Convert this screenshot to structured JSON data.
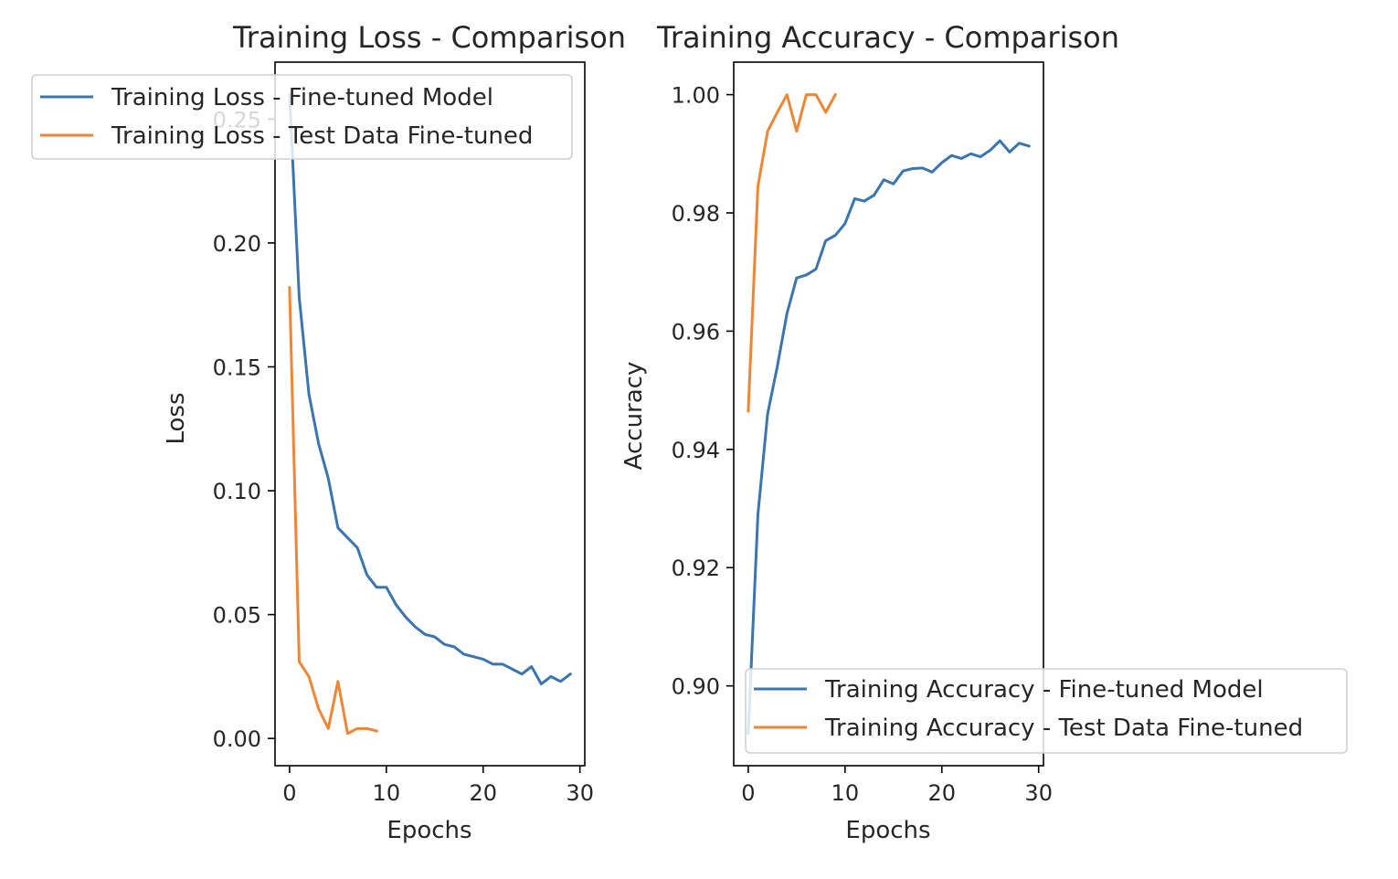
{
  "colors": {
    "series_blue": "#3b75af",
    "series_orange": "#ef8636",
    "axis": "#000000",
    "text": "#262626",
    "legend_border": "#d0d0d0"
  },
  "chart_data": [
    {
      "type": "line",
      "title": "Training Loss - Comparison",
      "xlabel": "Epochs",
      "ylabel": "Loss",
      "xlim": [
        -1.5,
        30.5
      ],
      "ylim": [
        -0.011,
        0.273
      ],
      "xticks": [
        0,
        10,
        20,
        30
      ],
      "xtick_labels": [
        "0",
        "10",
        "20",
        "30"
      ],
      "yticks": [
        0.0,
        0.05,
        0.1,
        0.15,
        0.2,
        0.25
      ],
      "ytick_labels": [
        "0.00",
        "0.05",
        "0.10",
        "0.15",
        "0.20",
        "0.25"
      ],
      "grid": false,
      "legend_position": "upper-left",
      "series": [
        {
          "name": "Training Loss - Fine-tuned Model",
          "color": "#3b75af",
          "x": [
            0,
            1,
            2,
            3,
            4,
            5,
            6,
            7,
            8,
            9,
            10,
            11,
            12,
            13,
            14,
            15,
            16,
            17,
            18,
            19,
            20,
            21,
            22,
            23,
            24,
            25,
            26,
            27,
            28,
            29
          ],
          "y": [
            0.26,
            0.178,
            0.139,
            0.119,
            0.105,
            0.085,
            0.081,
            0.077,
            0.066,
            0.061,
            0.061,
            0.054,
            0.049,
            0.045,
            0.042,
            0.041,
            0.038,
            0.037,
            0.034,
            0.033,
            0.032,
            0.03,
            0.03,
            0.028,
            0.026,
            0.029,
            0.022,
            0.025,
            0.023,
            0.026
          ]
        },
        {
          "name": "Training Loss - Test Data Fine-tuned",
          "color": "#ef8636",
          "x": [
            0,
            1,
            2,
            3,
            4,
            5,
            6,
            7,
            8,
            9
          ],
          "y": [
            0.182,
            0.031,
            0.025,
            0.012,
            0.004,
            0.023,
            0.002,
            0.004,
            0.004,
            0.003
          ]
        }
      ]
    },
    {
      "type": "line",
      "title": "Training Accuracy - Comparison",
      "xlabel": "Epochs",
      "ylabel": "Accuracy",
      "xlim": [
        -1.5,
        30.5
      ],
      "ylim": [
        0.8865,
        1.0055
      ],
      "xticks": [
        0,
        10,
        20,
        30
      ],
      "xtick_labels": [
        "0",
        "10",
        "20",
        "30"
      ],
      "yticks": [
        0.9,
        0.92,
        0.94,
        0.96,
        0.98,
        1.0
      ],
      "ytick_labels": [
        "0.90",
        "0.92",
        "0.94",
        "0.96",
        "0.98",
        "1.00"
      ],
      "grid": false,
      "legend_position": "lower-right",
      "series": [
        {
          "name": "Training Accuracy - Fine-tuned Model",
          "color": "#3b75af",
          "x": [
            0,
            1,
            2,
            3,
            4,
            5,
            6,
            7,
            8,
            9,
            10,
            11,
            12,
            13,
            14,
            15,
            16,
            17,
            18,
            19,
            20,
            21,
            22,
            23,
            24,
            25,
            26,
            27,
            28,
            29
          ],
          "y": [
            0.892,
            0.929,
            0.946,
            0.954,
            0.963,
            0.969,
            0.9695,
            0.9705,
            0.9753,
            0.9762,
            0.9782,
            0.9824,
            0.982,
            0.983,
            0.9856,
            0.9849,
            0.9871,
            0.9875,
            0.9876,
            0.9869,
            0.9885,
            0.9897,
            0.9892,
            0.99,
            0.9895,
            0.9906,
            0.9922,
            0.9903,
            0.9918,
            0.9913
          ]
        },
        {
          "name": "Training Accuracy - Test Data Fine-tuned",
          "color": "#ef8636",
          "x": [
            0,
            1,
            2,
            3,
            4,
            5,
            6,
            7,
            8,
            9
          ],
          "y": [
            0.9465,
            0.9845,
            0.9938,
            0.997,
            1.0,
            0.9938,
            1.0,
            1.0,
            0.997,
            1.0
          ]
        }
      ]
    }
  ]
}
